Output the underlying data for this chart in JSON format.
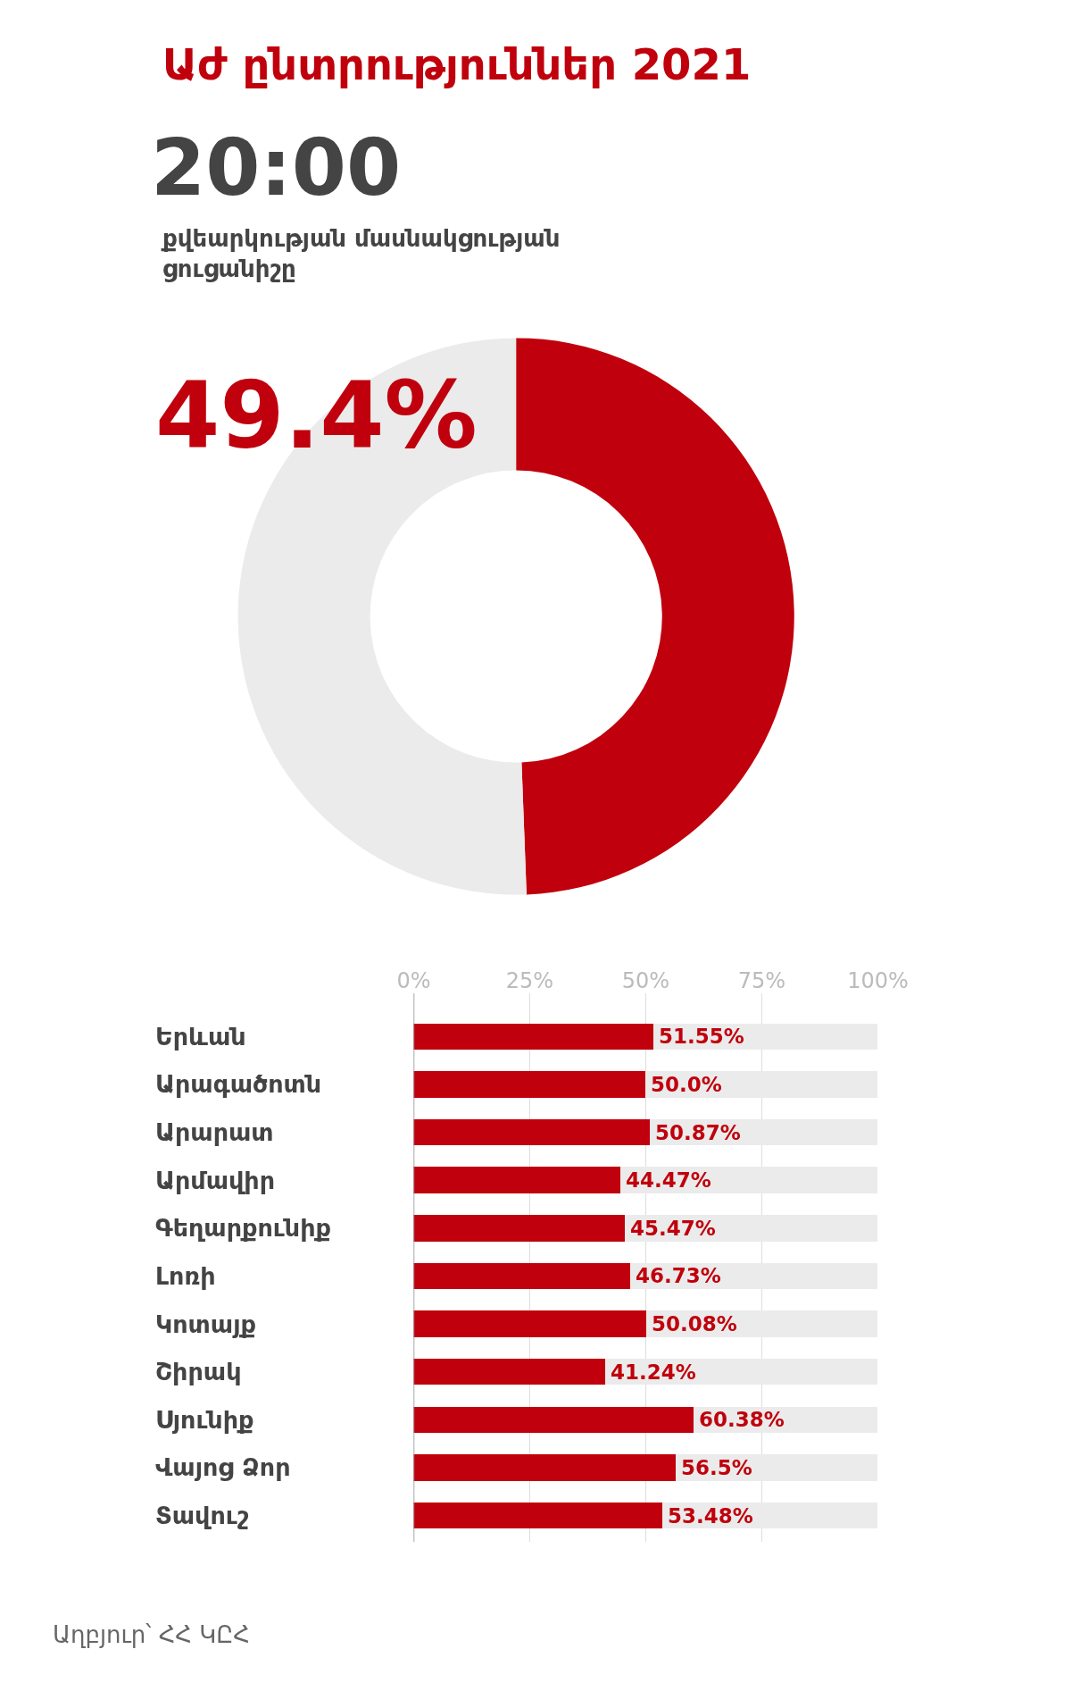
{
  "chart_data": [
    {
      "type": "donut",
      "title": "Աժ ընտրություններ 2021",
      "subtitle": "20:00",
      "annotations": [
        "քվեարկության մասնակցության ցուցանիշը"
      ],
      "categories": [
        null,
        null
      ],
      "values": [
        49.4,
        50.6
      ],
      "colors": [
        "#c0000c",
        "#ebebeb"
      ],
      "value_labels": [
        "49.4%",
        null
      ]
    },
    {
      "type": "bar",
      "orientation": "horizontal",
      "stacked": true,
      "categories": [
        "Երևան",
        "Արագածոտն",
        "Արարատ",
        "Արմավիր",
        "Գեղարքունիք",
        "Լոռի",
        "Կոտայք",
        "Շիրակ",
        "Սյունիք",
        "Վայոց Ձոր",
        "Տավուշ"
      ],
      "series": [
        {
          "color": "#c0000c",
          "values": [
            51.55,
            50.0,
            50.87,
            44.47,
            45.47,
            46.73,
            50.08,
            41.24,
            60.38,
            56.5,
            53.48
          ],
          "value_labels": [
            "51.55%",
            "50.0%",
            "50.87%",
            "44.47%",
            "45.47%",
            "46.73%",
            "50.08%",
            "41.24%",
            "60.38%",
            "56.5%",
            "53.48%"
          ]
        },
        {
          "color": "#ebebeb",
          "values": [
            48.45,
            50.0,
            49.13,
            55.53,
            54.53,
            53.27,
            49.92,
            58.76,
            39.62,
            43.5,
            46.52
          ]
        }
      ],
      "xlim": [
        0,
        100
      ],
      "xticks": [
        {
          "value": 0,
          "label": "0%"
        },
        {
          "value": 25,
          "label": "25%"
        },
        {
          "value": 50,
          "label": "50%"
        },
        {
          "value": 75,
          "label": "75%"
        },
        {
          "value": 100,
          "label": "100%"
        }
      ],
      "grid": "x",
      "annotations": [
        "Աղբյուր՝ ՀՀ ԿԸՀ"
      ]
    }
  ]
}
